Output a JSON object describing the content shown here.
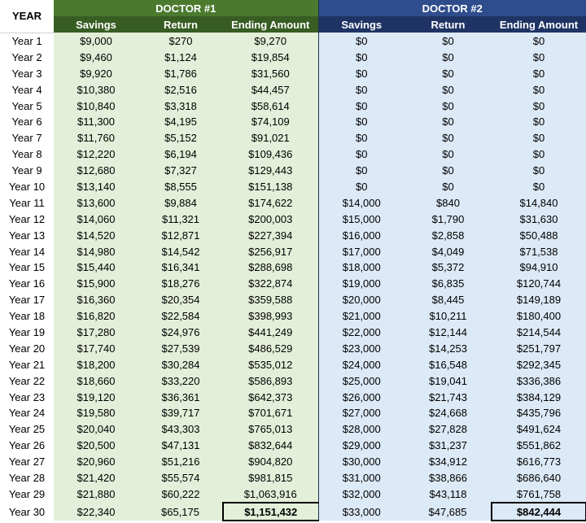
{
  "header": {
    "year_label": "YEAR",
    "doctor1": "DOCTOR  #1",
    "doctor2": "DOCTOR  #2",
    "columns": [
      "Savings",
      "Return",
      "Ending Amount",
      "Savings",
      "Return",
      "Ending Amount"
    ]
  },
  "rows": [
    {
      "year": "Year 1",
      "d1_savings": "$9,000",
      "d1_return": "$270",
      "d1_ending": "$9,270",
      "d2_savings": "$0",
      "d2_return": "$0",
      "d2_ending": "$0"
    },
    {
      "year": "Year 2",
      "d1_savings": "$9,460",
      "d1_return": "$1,124",
      "d1_ending": "$19,854",
      "d2_savings": "$0",
      "d2_return": "$0",
      "d2_ending": "$0"
    },
    {
      "year": "Year 3",
      "d1_savings": "$9,920",
      "d1_return": "$1,786",
      "d1_ending": "$31,560",
      "d2_savings": "$0",
      "d2_return": "$0",
      "d2_ending": "$0"
    },
    {
      "year": "Year 4",
      "d1_savings": "$10,380",
      "d1_return": "$2,516",
      "d1_ending": "$44,457",
      "d2_savings": "$0",
      "d2_return": "$0",
      "d2_ending": "$0"
    },
    {
      "year": "Year 5",
      "d1_savings": "$10,840",
      "d1_return": "$3,318",
      "d1_ending": "$58,614",
      "d2_savings": "$0",
      "d2_return": "$0",
      "d2_ending": "$0"
    },
    {
      "year": "Year 6",
      "d1_savings": "$11,300",
      "d1_return": "$4,195",
      "d1_ending": "$74,109",
      "d2_savings": "$0",
      "d2_return": "$0",
      "d2_ending": "$0"
    },
    {
      "year": "Year 7",
      "d1_savings": "$11,760",
      "d1_return": "$5,152",
      "d1_ending": "$91,021",
      "d2_savings": "$0",
      "d2_return": "$0",
      "d2_ending": "$0"
    },
    {
      "year": "Year 8",
      "d1_savings": "$12,220",
      "d1_return": "$6,194",
      "d1_ending": "$109,436",
      "d2_savings": "$0",
      "d2_return": "$0",
      "d2_ending": "$0"
    },
    {
      "year": "Year 9",
      "d1_savings": "$12,680",
      "d1_return": "$7,327",
      "d1_ending": "$129,443",
      "d2_savings": "$0",
      "d2_return": "$0",
      "d2_ending": "$0"
    },
    {
      "year": "Year 10",
      "d1_savings": "$13,140",
      "d1_return": "$8,555",
      "d1_ending": "$151,138",
      "d2_savings": "$0",
      "d2_return": "$0",
      "d2_ending": "$0"
    },
    {
      "year": "Year 11",
      "d1_savings": "$13,600",
      "d1_return": "$9,884",
      "d1_ending": "$174,622",
      "d2_savings": "$14,000",
      "d2_return": "$840",
      "d2_ending": "$14,840"
    },
    {
      "year": "Year 12",
      "d1_savings": "$14,060",
      "d1_return": "$11,321",
      "d1_ending": "$200,003",
      "d2_savings": "$15,000",
      "d2_return": "$1,790",
      "d2_ending": "$31,630"
    },
    {
      "year": "Year 13",
      "d1_savings": "$14,520",
      "d1_return": "$12,871",
      "d1_ending": "$227,394",
      "d2_savings": "$16,000",
      "d2_return": "$2,858",
      "d2_ending": "$50,488"
    },
    {
      "year": "Year 14",
      "d1_savings": "$14,980",
      "d1_return": "$14,542",
      "d1_ending": "$256,917",
      "d2_savings": "$17,000",
      "d2_return": "$4,049",
      "d2_ending": "$71,538"
    },
    {
      "year": "Year 15",
      "d1_savings": "$15,440",
      "d1_return": "$16,341",
      "d1_ending": "$288,698",
      "d2_savings": "$18,000",
      "d2_return": "$5,372",
      "d2_ending": "$94,910"
    },
    {
      "year": "Year 16",
      "d1_savings": "$15,900",
      "d1_return": "$18,276",
      "d1_ending": "$322,874",
      "d2_savings": "$19,000",
      "d2_return": "$6,835",
      "d2_ending": "$120,744"
    },
    {
      "year": "Year 17",
      "d1_savings": "$16,360",
      "d1_return": "$20,354",
      "d1_ending": "$359,588",
      "d2_savings": "$20,000",
      "d2_return": "$8,445",
      "d2_ending": "$149,189"
    },
    {
      "year": "Year 18",
      "d1_savings": "$16,820",
      "d1_return": "$22,584",
      "d1_ending": "$398,993",
      "d2_savings": "$21,000",
      "d2_return": "$10,211",
      "d2_ending": "$180,400"
    },
    {
      "year": "Year 19",
      "d1_savings": "$17,280",
      "d1_return": "$24,976",
      "d1_ending": "$441,249",
      "d2_savings": "$22,000",
      "d2_return": "$12,144",
      "d2_ending": "$214,544"
    },
    {
      "year": "Year 20",
      "d1_savings": "$17,740",
      "d1_return": "$27,539",
      "d1_ending": "$486,529",
      "d2_savings": "$23,000",
      "d2_return": "$14,253",
      "d2_ending": "$251,797"
    },
    {
      "year": "Year 21",
      "d1_savings": "$18,200",
      "d1_return": "$30,284",
      "d1_ending": "$535,012",
      "d2_savings": "$24,000",
      "d2_return": "$16,548",
      "d2_ending": "$292,345"
    },
    {
      "year": "Year 22",
      "d1_savings": "$18,660",
      "d1_return": "$33,220",
      "d1_ending": "$586,893",
      "d2_savings": "$25,000",
      "d2_return": "$19,041",
      "d2_ending": "$336,386"
    },
    {
      "year": "Year 23",
      "d1_savings": "$19,120",
      "d1_return": "$36,361",
      "d1_ending": "$642,373",
      "d2_savings": "$26,000",
      "d2_return": "$21,743",
      "d2_ending": "$384,129"
    },
    {
      "year": "Year 24",
      "d1_savings": "$19,580",
      "d1_return": "$39,717",
      "d1_ending": "$701,671",
      "d2_savings": "$27,000",
      "d2_return": "$24,668",
      "d2_ending": "$435,796"
    },
    {
      "year": "Year 25",
      "d1_savings": "$20,040",
      "d1_return": "$43,303",
      "d1_ending": "$765,013",
      "d2_savings": "$28,000",
      "d2_return": "$27,828",
      "d2_ending": "$491,624"
    },
    {
      "year": "Year 26",
      "d1_savings": "$20,500",
      "d1_return": "$47,131",
      "d1_ending": "$832,644",
      "d2_savings": "$29,000",
      "d2_return": "$31,237",
      "d2_ending": "$551,862"
    },
    {
      "year": "Year 27",
      "d1_savings": "$20,960",
      "d1_return": "$51,216",
      "d1_ending": "$904,820",
      "d2_savings": "$30,000",
      "d2_return": "$34,912",
      "d2_ending": "$616,773"
    },
    {
      "year": "Year 28",
      "d1_savings": "$21,420",
      "d1_return": "$55,574",
      "d1_ending": "$981,815",
      "d2_savings": "$31,000",
      "d2_return": "$38,866",
      "d2_ending": "$686,640"
    },
    {
      "year": "Year 29",
      "d1_savings": "$21,880",
      "d1_return": "$60,222",
      "d1_ending": "$1,063,916",
      "d2_savings": "$32,000",
      "d2_return": "$43,118",
      "d2_ending": "$761,758"
    },
    {
      "year": "Year 30",
      "d1_savings": "$22,340",
      "d1_return": "$65,175",
      "d1_ending": "$1,151,432",
      "d2_savings": "$33,000",
      "d2_return": "$47,685",
      "d2_ending": "$842,444"
    }
  ],
  "colors": {
    "doctor1_header": "#4b7a2f",
    "doctor1_subheader": "#385d23",
    "doctor1_cells": "#e3efd9",
    "doctor2_header": "#2f4d8c",
    "doctor2_subheader": "#1f3464",
    "doctor2_cells": "#dce9f6"
  }
}
